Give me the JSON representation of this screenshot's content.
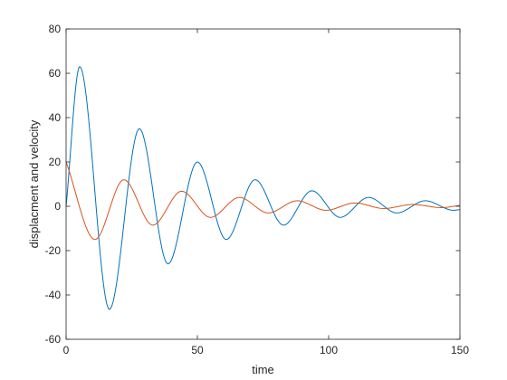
{
  "chart_data": {
    "type": "line",
    "title": "",
    "xlabel": "time",
    "ylabel": "displacment and velocity",
    "xlim": [
      0,
      150
    ],
    "ylim": [
      -60,
      80
    ],
    "xticks": [
      0,
      50,
      100,
      150
    ],
    "yticks": [
      -60,
      -40,
      -20,
      0,
      20,
      40,
      60,
      80
    ],
    "grid": false,
    "legend": "none",
    "series": [
      {
        "color": "#0072BD",
        "x": [
          0,
          5.2,
          16.5,
          27.9,
          38.8,
          50.0,
          61.0,
          72.0,
          82.8,
          93.6,
          104.4,
          115.2,
          126.0,
          136.8,
          147.6,
          150
        ],
        "y": [
          0,
          63,
          -46.5,
          35,
          -26,
          20,
          -15,
          12,
          -8.5,
          7,
          -5,
          4,
          -3,
          2.5,
          -1.8,
          -1.5
        ]
      },
      {
        "color": "#D95319",
        "x": [
          0,
          11.0,
          22.0,
          33.0,
          44.0,
          55.0,
          66.0,
          77.0,
          88.0,
          99.0,
          110.0,
          121.0,
          132.0,
          143.0,
          150
        ],
        "y": [
          20,
          -15,
          12,
          -8.5,
          6.8,
          -5,
          4,
          -3,
          2.5,
          -1.8,
          1.5,
          -1,
          0.8,
          -0.6,
          0.4
        ]
      }
    ]
  }
}
